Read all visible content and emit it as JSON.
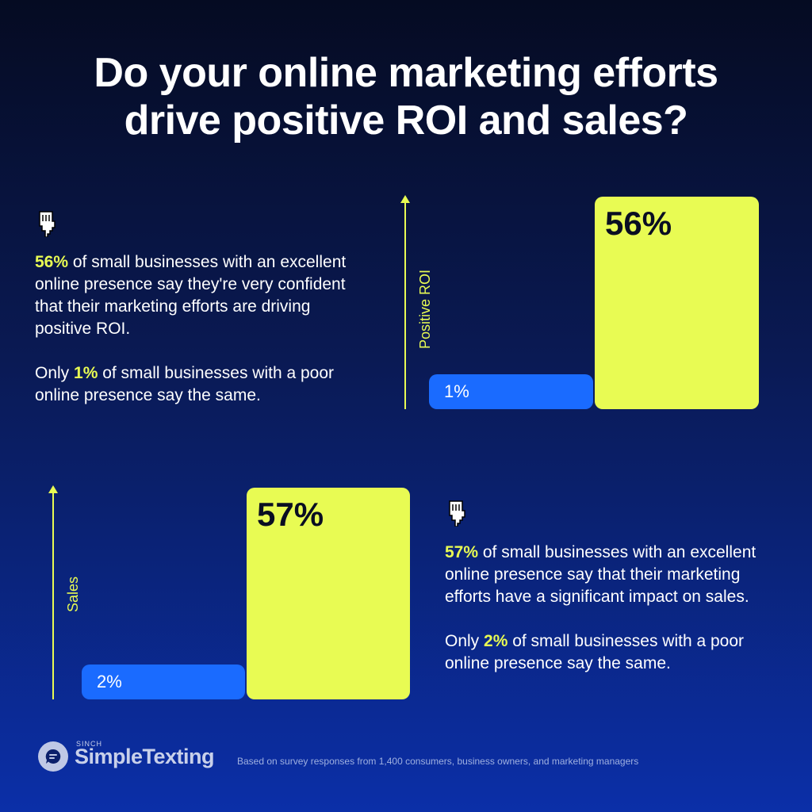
{
  "title": {
    "line1": "Do your online marketing efforts",
    "line2": "drive positive ROI and sales?"
  },
  "section_roi": {
    "p1_highlight": "56%",
    "p1_rest": " of small businesses with an excellent online presence say they're very confident that their marketing efforts are driving positive ROI.",
    "p2_prefix": "Only ",
    "p2_highlight": "1%",
    "p2_rest": " of small businesses with a poor online presence say the same."
  },
  "section_sales": {
    "p1_highlight": "57%",
    "p1_rest": " of small businesses with an excellent online presence say that their marketing efforts have a significant impact on sales.",
    "p2_prefix": "Only ",
    "p2_highlight": "2%",
    "p2_rest": " of small businesses with a poor online presence say the same."
  },
  "chart_data": [
    {
      "type": "bar",
      "ylabel": "Positive ROI",
      "bars": [
        {
          "label": "1%",
          "value": 1,
          "color": "#1a6bff"
        },
        {
          "label": "56%",
          "value": 56,
          "color": "#e8fb53"
        }
      ]
    },
    {
      "type": "bar",
      "ylabel": "Sales",
      "bars": [
        {
          "label": "2%",
          "value": 2,
          "color": "#1a6bff"
        },
        {
          "label": "57%",
          "value": 57,
          "color": "#e8fb53"
        }
      ]
    }
  ],
  "brand": {
    "small": "SINCH",
    "name": "SimpleTexting"
  },
  "footnote": "Based on survey responses from 1,400 consumers, business owners, and marketing managers",
  "icons": {
    "pointing_hand": "pointing-down-hand-icon",
    "logo": "chat-bubble-icon"
  }
}
